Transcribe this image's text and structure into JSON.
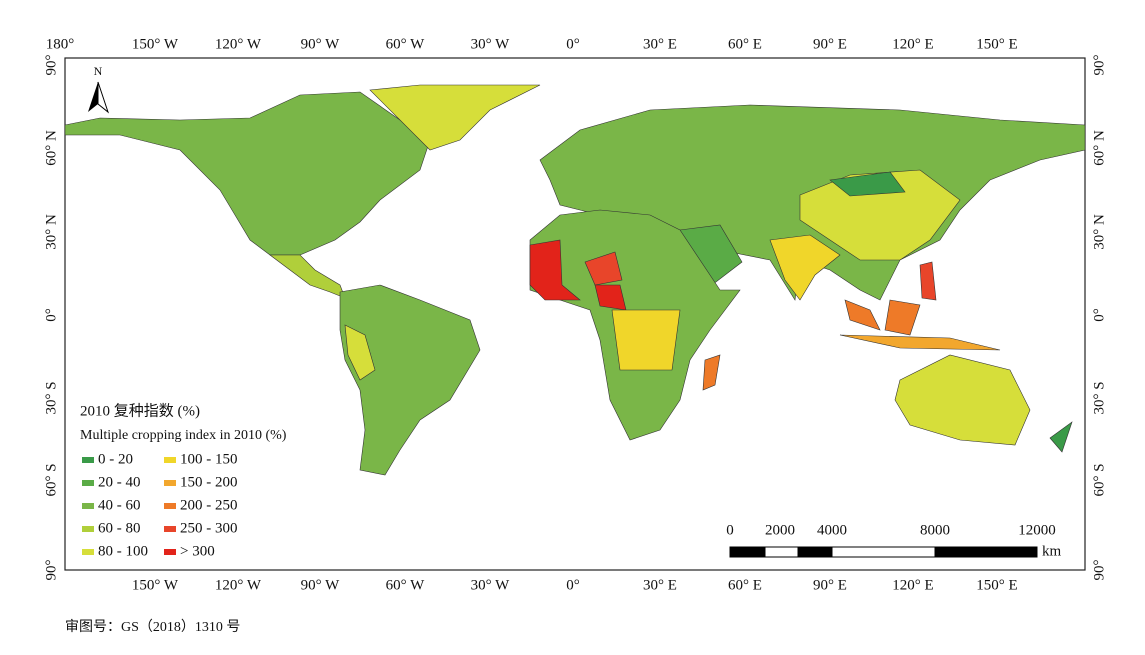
{
  "map": {
    "north_arrow": "N",
    "top_labels": [
      "180°",
      "150° W",
      "120° W",
      "90° W",
      "60° W",
      "30° W",
      "0°",
      "30° E",
      "60° E",
      "90° E",
      "120° E",
      "150° E"
    ],
    "bottom_labels": [
      "150° W",
      "120° W",
      "90° W",
      "60° W",
      "30° W",
      "0°",
      "30° E",
      "60° E",
      "90° E",
      "120° E",
      "150° E"
    ],
    "left_labels": [
      "90°",
      "60° N",
      "30° N",
      "0°",
      "30° S",
      "60° S",
      "90°"
    ],
    "right_labels": [
      "90°",
      "60° N",
      "30° N",
      "0°",
      "30° S",
      "60° S",
      "90°"
    ],
    "legend": {
      "title_cn": "2010 复种指数 (%)",
      "title_en": "Multiple cropping index in 2010 (%)",
      "items": [
        {
          "label": "0 - 20",
          "color": "#3a9a48"
        },
        {
          "label": "20 - 40",
          "color": "#5aab46"
        },
        {
          "label": "40 - 60",
          "color": "#7ab648"
        },
        {
          "label": "60 - 80",
          "color": "#b0cf3a"
        },
        {
          "label": "80 - 100",
          "color": "#d6de3a"
        },
        {
          "label": "100 - 150",
          "color": "#f0d62a"
        },
        {
          "label": "150 - 200",
          "color": "#f2a72e"
        },
        {
          "label": "200 - 250",
          "color": "#ee7a28"
        },
        {
          "label": "250 - 300",
          "color": "#e8452a"
        },
        {
          "label": "> 300",
          "color": "#e2231a"
        }
      ]
    },
    "scale_bar": {
      "ticks": [
        "0",
        "2000",
        "4000",
        "8000",
        "12000"
      ],
      "unit": "km"
    },
    "footer": "审图号：GS（2018）1310 号"
  }
}
